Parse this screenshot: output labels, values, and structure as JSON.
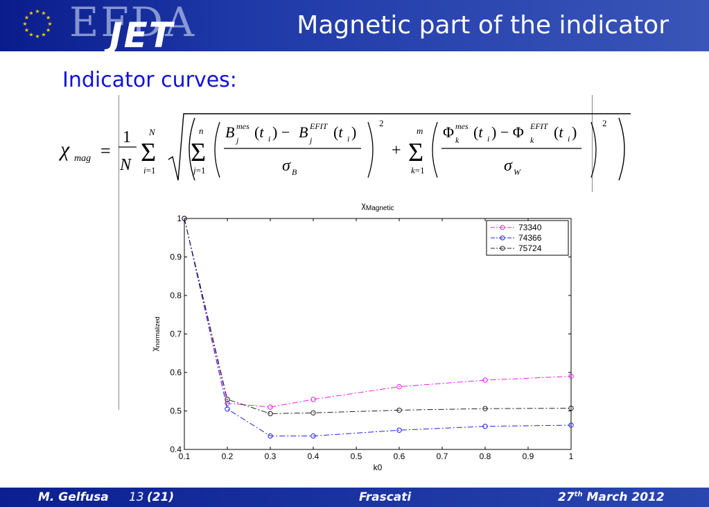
{
  "header": {
    "logo_efda": "EFDA",
    "logo_jet": "JET",
    "title": "Magnetic part of the indicator"
  },
  "slide": {
    "subtitle": "Indicator curves:"
  },
  "formula": {
    "lhs": "χ_mag = (1/N) Σ_{i=1}^{N} sqrt( ( Σ_{j=1}^{n} (B_j^mes(t_i) − B_j^EFIT(t_i))/σ_B )^2 + Σ_{k=1}^{m} ( (Φ_k^mes(t_i) − Φ_k^EFIT(t_i))/σ_W )^2 )"
  },
  "chart_data": {
    "type": "line",
    "title": "χMagnetic",
    "xlabel": "k0",
    "ylabel": "χnormalized",
    "xlim": [
      0.1,
      1
    ],
    "ylim": [
      0.4,
      1
    ],
    "x": [
      0.1,
      0.2,
      0.3,
      0.4,
      0.6,
      0.8,
      1.0
    ],
    "xticks": [
      "0.1",
      "0.2",
      "0.3",
      "0.4",
      "0.5",
      "0.6",
      "0.7",
      "0.8",
      "0.9",
      "1"
    ],
    "yticks": [
      "0.4",
      "0.5",
      "0.6",
      "0.7",
      "0.8",
      "0.9",
      "1"
    ],
    "legend_position": "top-right",
    "series": [
      {
        "name": "73340",
        "color": "#e020e0",
        "values": [
          1.0,
          0.52,
          0.51,
          0.53,
          0.563,
          0.58,
          0.59
        ]
      },
      {
        "name": "74366",
        "color": "#2020e0",
        "values": [
          1.0,
          0.505,
          0.435,
          0.435,
          0.45,
          0.46,
          0.463
        ]
      },
      {
        "name": "75724",
        "color": "#202020",
        "values": [
          1.0,
          0.53,
          0.493,
          0.495,
          0.502,
          0.506,
          0.507
        ]
      }
    ]
  },
  "footer": {
    "author": "M. Gelfusa",
    "page": "13",
    "total": "(21)",
    "place": "Frascati",
    "date_day": "27",
    "date_sup": "th",
    "date_rest": " March 2012"
  }
}
